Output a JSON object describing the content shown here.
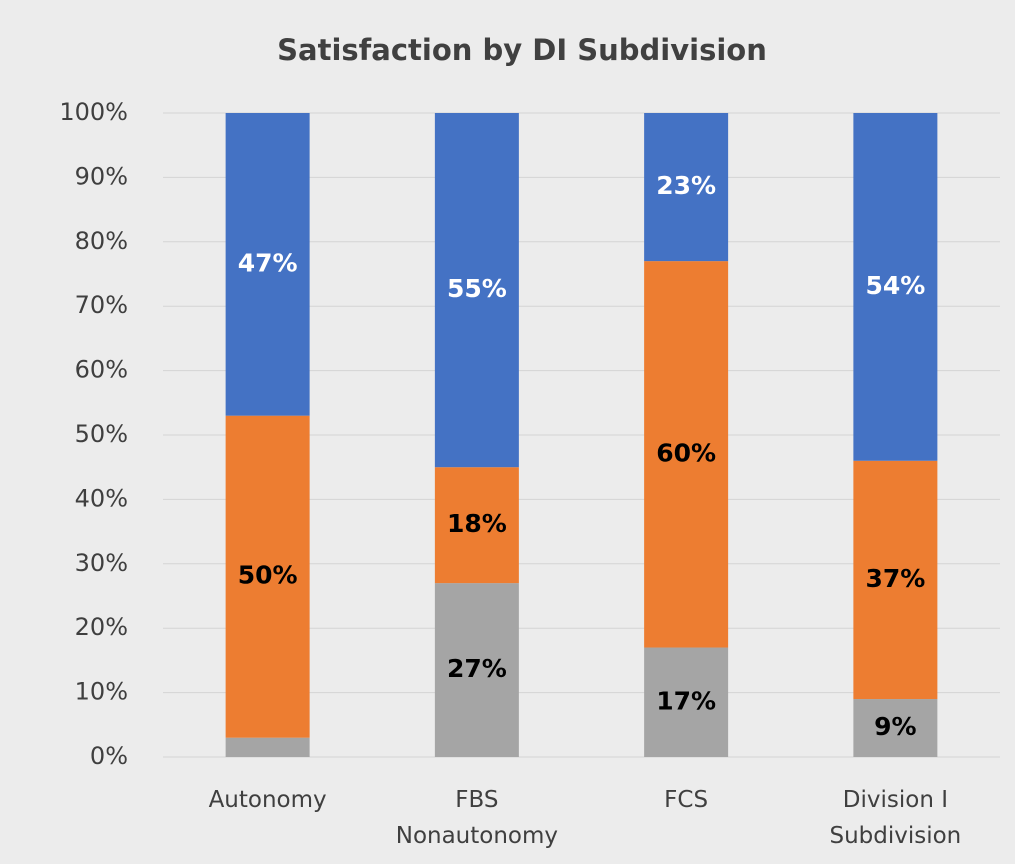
{
  "chart_data": {
    "type": "stacked_bar",
    "title": "Satisfaction by DI Subdivision",
    "categories": [
      "Autonomy",
      "FBS Nonautonomy",
      "FCS",
      "Division I Subdivision"
    ],
    "series": [
      {
        "color": "#a5a5a5",
        "label_color": "#000000",
        "values": [
          3,
          27,
          17,
          9
        ],
        "value_labels": [
          null,
          "27%",
          "17%",
          "9%"
        ]
      },
      {
        "color": "#ed7d31",
        "label_color": "#000000",
        "values": [
          50,
          18,
          60,
          37
        ],
        "value_labels": [
          "50%",
          "18%",
          "60%",
          "37%"
        ]
      },
      {
        "color": "#4472c4",
        "label_color": "#ffffff",
        "values": [
          47,
          55,
          23,
          54
        ],
        "value_labels": [
          "47%",
          "55%",
          "23%",
          "54%"
        ]
      }
    ],
    "ylim": [
      0,
      100
    ],
    "yticks": [
      {
        "value": 0,
        "label": "0%"
      },
      {
        "value": 10,
        "label": "10%"
      },
      {
        "value": 20,
        "label": "20%"
      },
      {
        "value": 30,
        "label": "30%"
      },
      {
        "value": 40,
        "label": "40%"
      },
      {
        "value": 50,
        "label": "50%"
      },
      {
        "value": 60,
        "label": "60%"
      },
      {
        "value": 70,
        "label": "70%"
      },
      {
        "value": 80,
        "label": "80%"
      },
      {
        "value": 90,
        "label": "90%"
      },
      {
        "value": 100,
        "label": "100%"
      }
    ],
    "grid": true
  }
}
